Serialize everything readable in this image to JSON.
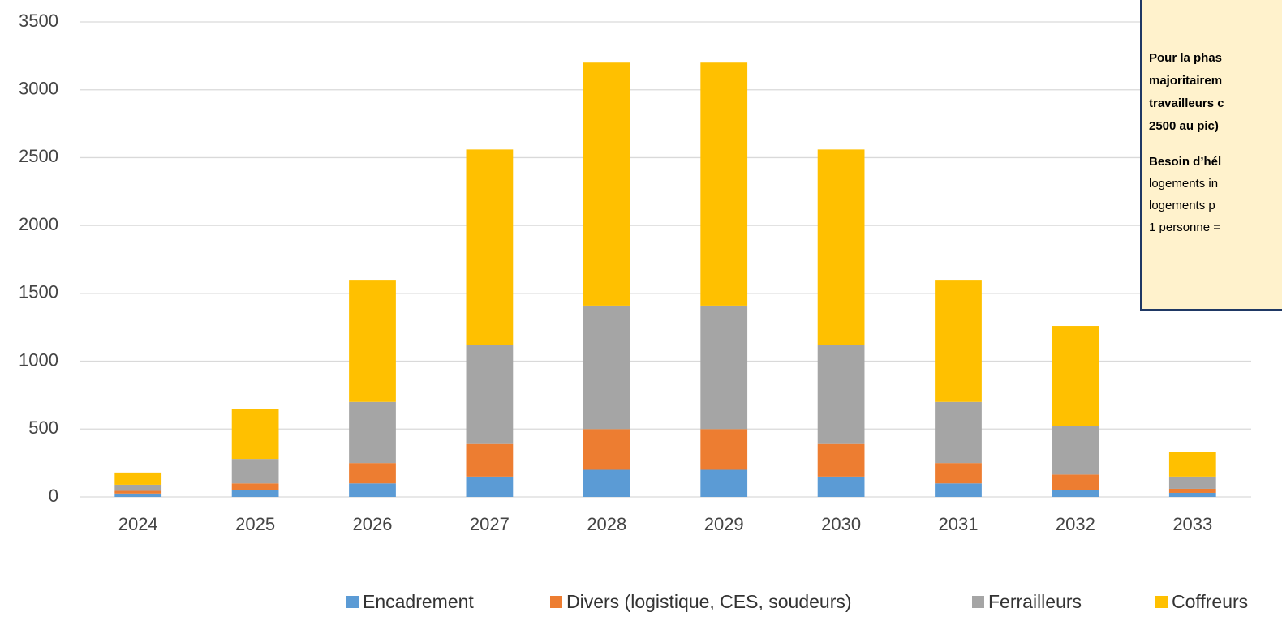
{
  "chart_data": {
    "type": "stacked_bar",
    "categories": [
      "2024",
      "2025",
      "2026",
      "2027",
      "2028",
      "2029",
      "2030",
      "2031",
      "2032",
      "2033"
    ],
    "series": [
      {
        "name": "Encadrement",
        "color": "#5b9bd5",
        "values": [
          25,
          50,
          100,
          150,
          200,
          200,
          150,
          100,
          50,
          30
        ]
      },
      {
        "name": "Divers (logistique, CES, soudeurs)",
        "color": "#ed7d31",
        "values": [
          20,
          50,
          150,
          240,
          300,
          300,
          240,
          150,
          115,
          30
        ]
      },
      {
        "name": "Ferrailleurs",
        "color": "#a5a5a5",
        "values": [
          45,
          180,
          450,
          730,
          910,
          910,
          730,
          450,
          360,
          90
        ]
      },
      {
        "name": "Coffreurs",
        "color": "#ffc000",
        "values": [
          90,
          365,
          900,
          1440,
          1790,
          1790,
          1440,
          900,
          735,
          180
        ]
      }
    ],
    "ylim": [
      0,
      3500
    ],
    "yticks": [
      0,
      500,
      1000,
      1500,
      2000,
      2500,
      3000,
      3500
    ],
    "grid": true,
    "legend": "bottom",
    "annotation": [
      "Pour la phas",
      "majoritairem",
      "travailleurs c",
      "2500 au pic)",
      "Besoin d’hél",
      "logements in",
      "logements p",
      "1 personne ="
    ]
  }
}
